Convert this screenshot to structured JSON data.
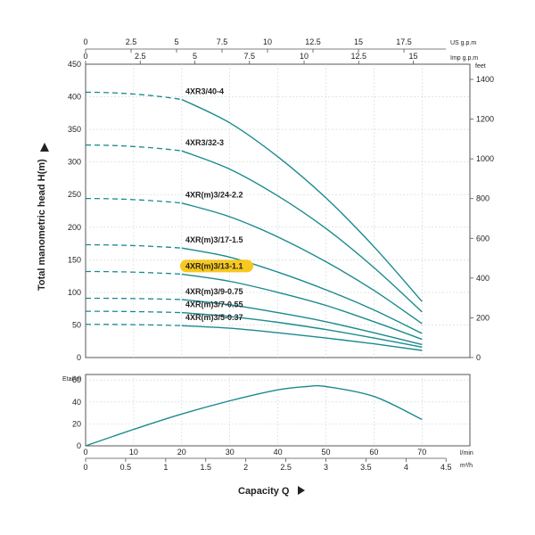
{
  "chart_data": [
    {
      "type": "line",
      "ylabel": "Total manometric head H(m)",
      "y_right_unit": "feet",
      "top_axis_1_unit": "US g.p.m",
      "top_axis_2_unit": "Imp g.p.m",
      "ylim": [
        0,
        450
      ],
      "xlim": [
        0,
        80
      ],
      "yticks": [
        "0",
        "50",
        "100",
        "150",
        "200",
        "250",
        "300",
        "350",
        "400",
        "450"
      ],
      "feet_ticks": [
        "0",
        "200",
        "400",
        "600",
        "800",
        "1000",
        "1200",
        "1400"
      ],
      "us_gpm_ticks": [
        "0",
        "2.5",
        "5",
        "7.5",
        "10",
        "12.5",
        "15",
        "17.5"
      ],
      "imp_gpm_ticks": [
        "0",
        "2.5",
        "5",
        "7.5",
        "10",
        "12.5",
        "15"
      ],
      "highlight": "4XR(m)3/13-1.1",
      "highlight_color": "#f7c81e",
      "curve_color": "#1a8a8e",
      "series": [
        {
          "name": "4XR3/40-4",
          "shutoff": 407,
          "x": [
            20,
            30,
            40,
            50,
            60,
            70
          ],
          "y": [
            396,
            360,
            308,
            245,
            170,
            86
          ]
        },
        {
          "name": "4XR3/32-3",
          "shutoff": 326,
          "x": [
            20,
            30,
            40,
            50,
            60,
            70
          ],
          "y": [
            317,
            289,
            248,
            198,
            138,
            70
          ]
        },
        {
          "name": "4XR(m)3/24-2.2",
          "shutoff": 244,
          "x": [
            20,
            30,
            40,
            50,
            60,
            70
          ],
          "y": [
            237,
            216,
            185,
            147,
            103,
            52
          ]
        },
        {
          "name": "4XR(m)3/17-1.5",
          "shutoff": 173,
          "x": [
            20,
            30,
            40,
            50,
            60,
            70
          ],
          "y": [
            168,
            154,
            131,
            104,
            73,
            37
          ]
        },
        {
          "name": "4XR(m)3/13-1.1",
          "shutoff": 132,
          "x": [
            20,
            30,
            40,
            50,
            60,
            70
          ],
          "y": [
            128,
            117,
            100,
            80,
            55,
            28
          ]
        },
        {
          "name": "4XR(m)3/9-0.75",
          "shutoff": 91,
          "x": [
            20,
            30,
            40,
            50,
            60,
            70
          ],
          "y": [
            89,
            81,
            69,
            55,
            38,
            20
          ]
        },
        {
          "name": "4XR(m)3/7-0.55",
          "shutoff": 71,
          "x": [
            20,
            30,
            40,
            50,
            60,
            70
          ],
          "y": [
            69,
            63,
            54,
            43,
            30,
            16
          ]
        },
        {
          "name": "4XR(m)3/5-0.37",
          "shutoff": 51,
          "x": [
            20,
            30,
            40,
            50,
            60,
            70
          ],
          "y": [
            49,
            45,
            38,
            30,
            21,
            11
          ]
        }
      ]
    },
    {
      "type": "line",
      "ylabel": "Eta(%)",
      "xlabel": "Capacity Q",
      "ylim": [
        0,
        65
      ],
      "xlim": [
        0,
        80
      ],
      "yticks": [
        "0",
        "20",
        "40",
        "60"
      ],
      "xticks_lmin": [
        "0",
        "10",
        "20",
        "30",
        "40",
        "50",
        "60",
        "70"
      ],
      "x_unit_lmin": "l/min",
      "xticks_m3h": [
        "0",
        "0.5",
        "1",
        "1.5",
        "2",
        "2.5",
        "3",
        "3.5",
        "4",
        "4.5"
      ],
      "x_unit_m3h": "m³/h",
      "series": [
        {
          "x": [
            0,
            10,
            20,
            30,
            40,
            46,
            50,
            60,
            70
          ],
          "y": [
            0,
            15,
            29,
            41,
            51,
            54,
            54,
            45,
            24
          ]
        }
      ]
    }
  ]
}
